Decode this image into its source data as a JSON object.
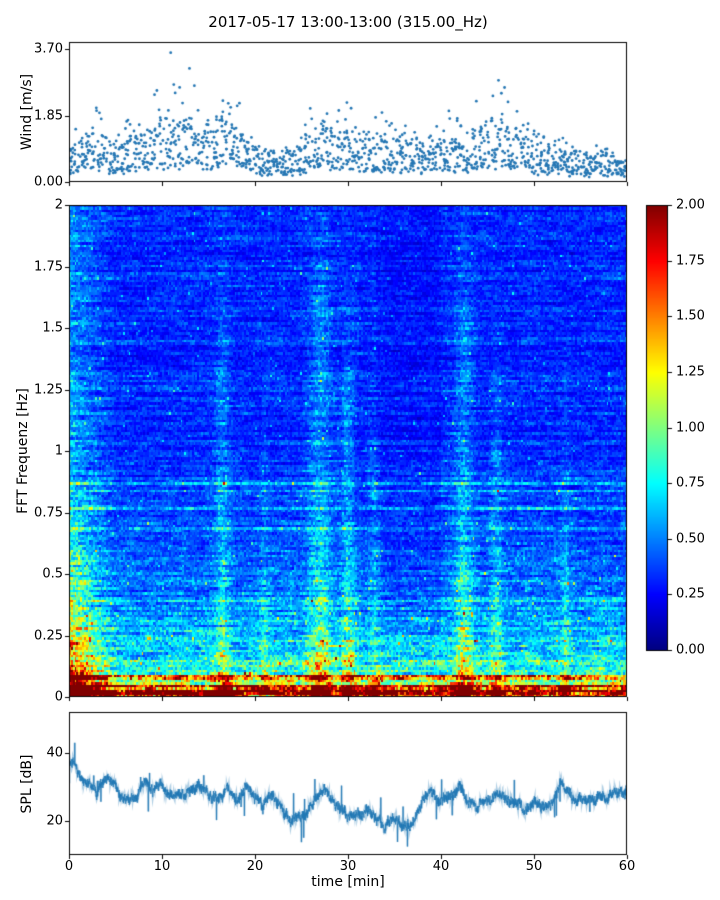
{
  "figure_title": "2017-05-17 13:00-13:00 (315.00_Hz)",
  "x_axis": {
    "label": "time [min]",
    "ticks": [
      0,
      10,
      20,
      30,
      40,
      50,
      60
    ],
    "lim": [
      0,
      60
    ]
  },
  "colorbar": {
    "tick_labels": [
      "2.00",
      "1.75",
      "1.50",
      "1.25",
      "1.00",
      "0.75",
      "0.50",
      "0.25",
      "0.00"
    ],
    "lim": [
      0,
      2
    ],
    "colormap": "jet"
  },
  "chart_data": [
    {
      "type": "scatter",
      "name": "wind-speed",
      "ylabel": "Wind [m/s]",
      "ytick_labels": [
        "3.70",
        "1.85",
        "0.00"
      ],
      "ylim": [
        0,
        3.9
      ],
      "xlim": [
        0,
        60
      ],
      "marker_color": "#2577b4",
      "points_per_minute": 24,
      "x_minutes": [
        0,
        1,
        2,
        3,
        4,
        5,
        6,
        7,
        8,
        9,
        10,
        11,
        12,
        13,
        14,
        15,
        16,
        17,
        18,
        19,
        20,
        21,
        22,
        23,
        24,
        25,
        26,
        27,
        28,
        29,
        30,
        31,
        32,
        33,
        34,
        35,
        36,
        37,
        38,
        39,
        40,
        41,
        42,
        43,
        44,
        45,
        46,
        47,
        48,
        49,
        50,
        51,
        52,
        53,
        54,
        55,
        56,
        57,
        58,
        59,
        60
      ],
      "mean_wind_mps": [
        0.7,
        0.8,
        1.0,
        1.2,
        0.9,
        0.7,
        0.8,
        1.0,
        0.9,
        1.1,
        1.3,
        1.5,
        1.3,
        1.4,
        1.0,
        1.0,
        1.3,
        1.4,
        1.3,
        1.0,
        0.8,
        0.6,
        0.5,
        0.5,
        0.6,
        0.7,
        1.0,
        1.2,
        1.1,
        1.0,
        1.1,
        0.9,
        0.8,
        0.9,
        1.0,
        0.9,
        0.9,
        0.8,
        0.7,
        0.8,
        0.9,
        1.0,
        0.9,
        0.7,
        1.1,
        1.3,
        1.4,
        1.2,
        1.0,
        0.9,
        0.8,
        0.7,
        0.8,
        0.7,
        0.6,
        0.6,
        0.5,
        0.6,
        0.5,
        0.4,
        0.3
      ],
      "peak_wind_mps": [
        1.4,
        1.9,
        2.0,
        2.1,
        1.6,
        1.3,
        1.9,
        2.2,
        1.7,
        2.5,
        3.0,
        3.7,
        3.3,
        3.3,
        2.9,
        2.0,
        2.3,
        2.4,
        2.3,
        2.0,
        1.5,
        1.1,
        0.9,
        0.9,
        1.1,
        1.5,
        2.2,
        2.3,
        2.0,
        2.1,
        2.5,
        1.7,
        1.5,
        1.9,
        2.0,
        1.7,
        1.6,
        1.5,
        1.3,
        1.5,
        1.9,
        2.1,
        1.7,
        1.3,
        2.6,
        3.1,
        3.0,
        2.7,
        2.4,
        1.7,
        1.5,
        1.3,
        1.5,
        1.3,
        1.1,
        1.1,
        0.9,
        1.1,
        0.9,
        0.8,
        0.6
      ]
    },
    {
      "type": "heatmap",
      "name": "fft-spectrogram",
      "ylabel": "FFT Frequenz [Hz]",
      "ytick_labels": [
        "2",
        "1.75",
        "1.5",
        "1.25",
        "1",
        "0.75",
        "0.5",
        "0.25",
        "0"
      ],
      "ylim": [
        0,
        2
      ],
      "xlim": [
        0,
        60
      ],
      "clim": [
        0,
        2
      ],
      "colormap": "jet",
      "background_mean": {
        "base": 0.32,
        "amp": 0.55,
        "decay_hz": 0.28,
        "ref_hz": 0.09
      },
      "low_freq_bands": [
        {
          "f_max_hz": 0.025,
          "mean": 1.9
        },
        {
          "f_max_hz": 0.05,
          "mean": 1.5
        },
        {
          "f_max_hz": 0.09,
          "mean": 1.05
        }
      ],
      "left_edge_boost": {
        "until_min": 5,
        "max_factor": 2.1
      },
      "quiet_period": {
        "t_start": 33,
        "t_end": 40,
        "factor": 0.88
      },
      "event_streaks": [
        {
          "t": 16.5,
          "width": 0.8,
          "strength": 1.5,
          "f_max": 1.3
        },
        {
          "t": 21.0,
          "width": 0.5,
          "strength": 1.25,
          "f_max": 0.9
        },
        {
          "t": 27.0,
          "width": 1.2,
          "strength": 1.6,
          "f_max": 1.6
        },
        {
          "t": 30.0,
          "width": 0.7,
          "strength": 1.5,
          "f_max": 1.2
        },
        {
          "t": 33.0,
          "width": 0.6,
          "strength": 1.3,
          "f_max": 1.0
        },
        {
          "t": 42.5,
          "width": 1.0,
          "strength": 1.6,
          "f_max": 1.5
        },
        {
          "t": 46.0,
          "width": 0.6,
          "strength": 1.4,
          "f_max": 1.0
        },
        {
          "t": 53.5,
          "width": 0.5,
          "strength": 1.3,
          "f_max": 0.8
        }
      ]
    },
    {
      "type": "line",
      "name": "spl",
      "ylabel": "SPL [dB]",
      "ytick_labels": [
        "40",
        "20"
      ],
      "ylim": [
        10,
        52
      ],
      "xlim": [
        0,
        60
      ],
      "line_color": "#1f77b4",
      "x_minutes": [
        0,
        1,
        2,
        3,
        4,
        5,
        6,
        7,
        8,
        9,
        10,
        11,
        12,
        13,
        14,
        15,
        16,
        17,
        18,
        19,
        20,
        21,
        22,
        23,
        24,
        25,
        26,
        27,
        28,
        29,
        30,
        31,
        32,
        33,
        34,
        35,
        36,
        37,
        38,
        39,
        40,
        41,
        42,
        43,
        44,
        45,
        46,
        47,
        48,
        49,
        50,
        51,
        52,
        53,
        54,
        55,
        56,
        57,
        58,
        59,
        60
      ],
      "spl_db": [
        37,
        36,
        33,
        28,
        32,
        30,
        28,
        27,
        30,
        28,
        30,
        29,
        27,
        28,
        30,
        27,
        26,
        29,
        28,
        30,
        27,
        26,
        28,
        24,
        20,
        22,
        26,
        28,
        27,
        25,
        21,
        22,
        24,
        20,
        18,
        19,
        18,
        20,
        26,
        28,
        27,
        26,
        30,
        26,
        24,
        26,
        28,
        26,
        25,
        24,
        26,
        25,
        27,
        31,
        29,
        26,
        27,
        28,
        26,
        28,
        30
      ]
    }
  ]
}
